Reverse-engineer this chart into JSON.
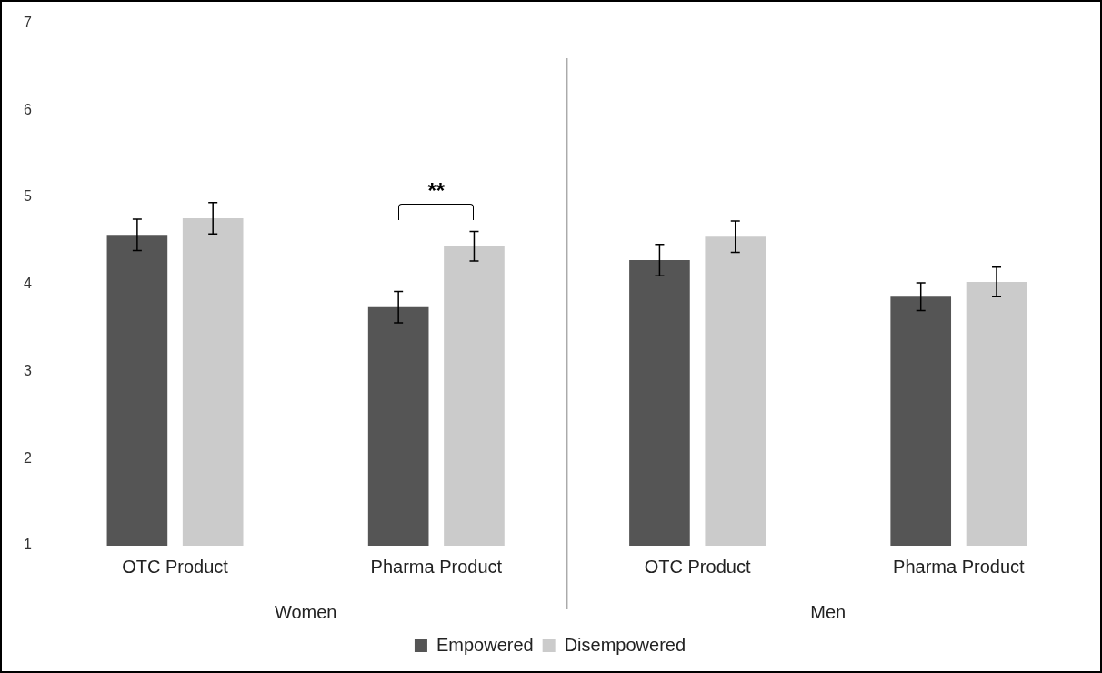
{
  "chart_data": {
    "type": "bar",
    "categories": [
      "OTC Product",
      "Pharma Product",
      "OTC Product",
      "Pharma Product"
    ],
    "series": [
      {
        "name": "Empowered",
        "color": "#555555",
        "values": [
          4.57,
          3.74,
          4.28,
          3.86
        ],
        "errors": [
          0.18,
          0.18,
          0.18,
          0.16
        ]
      },
      {
        "name": "Disempowered",
        "color": "#cbcbcb",
        "values": [
          4.76,
          4.44,
          4.55,
          4.03
        ],
        "errors": [
          0.18,
          0.17,
          0.18,
          0.17
        ]
      }
    ],
    "ylim": [
      1,
      7
    ],
    "yticks": [
      1,
      2,
      3,
      4,
      5,
      6,
      7
    ],
    "grid": false,
    "legend": "bottom",
    "annotations": [
      "**",
      "Women",
      "Men"
    ]
  }
}
